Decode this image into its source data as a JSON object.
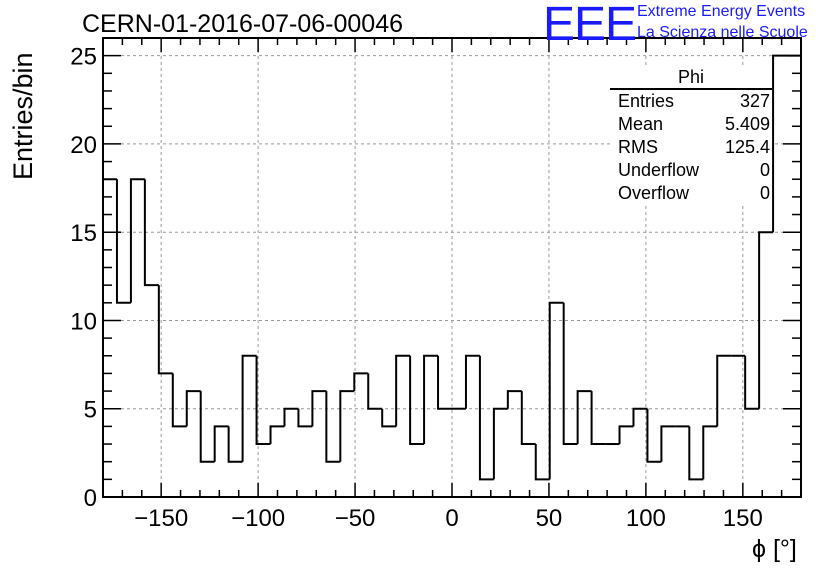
{
  "header": {
    "run_title": "CERN-01-2016-07-06-00046",
    "logo_text": "EEE",
    "logo_line1": "Extreme Energy Events",
    "logo_line2": "La Scienza nelle Scuole",
    "brand_color": "#1a1aff"
  },
  "stats": {
    "title": "Phi",
    "rows": [
      {
        "label": "Entries",
        "value": "327"
      },
      {
        "label": "Mean",
        "value": "5.409"
      },
      {
        "label": "RMS",
        "value": "125.4"
      },
      {
        "label": "Underflow",
        "value": "0"
      },
      {
        "label": "Overflow",
        "value": "0"
      }
    ]
  },
  "chart_data": {
    "type": "bar",
    "style": "step-histogram",
    "xlabel": "ϕ [°]",
    "ylabel": "Entries/bin",
    "xlim": [
      -180,
      180
    ],
    "ylim": [
      0,
      26
    ],
    "bin_width": 7.2,
    "x_ticks": [
      -150,
      -100,
      -50,
      0,
      50,
      100,
      150
    ],
    "x_tick_labels": [
      "−150",
      "−100",
      "−50",
      "0",
      "50",
      "100",
      "150"
    ],
    "y_ticks": [
      0,
      5,
      10,
      15,
      20,
      25
    ],
    "grid": true,
    "values": [
      18,
      11,
      18,
      12,
      7,
      4,
      6,
      2,
      4,
      2,
      8,
      3,
      4,
      5,
      4,
      6,
      2,
      6,
      7,
      5,
      4,
      8,
      3,
      8,
      5,
      5,
      8,
      1,
      5,
      6,
      3,
      1,
      11,
      3,
      6,
      3,
      3,
      4,
      5,
      2,
      4,
      4,
      1,
      4,
      8,
      8,
      5,
      15,
      25,
      25
    ]
  }
}
